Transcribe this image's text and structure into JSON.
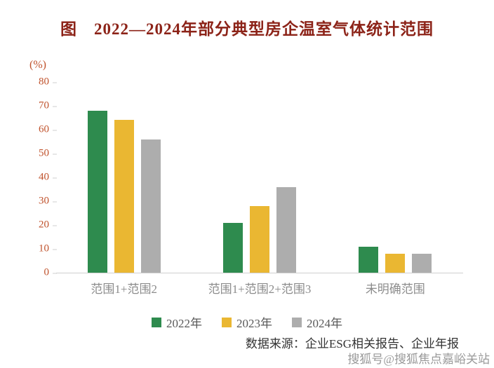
{
  "title": "图　2022—2024年部分典型房企温室气体统计范围",
  "source": "数据来源：企业ESG相关报告、企业年报",
  "watermark": "搜狐号@搜狐焦点嘉峪关站",
  "chart_data": {
    "type": "bar",
    "title": "2022—2024年部分典型房企温室气体统计范围",
    "xlabel": "",
    "ylabel": "(%)",
    "ylim": [
      0,
      80
    ],
    "yticks": [
      0,
      10,
      20,
      30,
      40,
      50,
      60,
      70,
      80
    ],
    "grid": false,
    "legend_position": "bottom",
    "categories": [
      "范围1+范围2",
      "范围1+范围2+范围3",
      "未明确范围"
    ],
    "series": [
      {
        "name": "2022年",
        "color": "#2E8B4E",
        "values": [
          68,
          21,
          11
        ]
      },
      {
        "name": "2023年",
        "color": "#EAB732",
        "values": [
          64,
          28,
          8
        ]
      },
      {
        "name": "2024年",
        "color": "#ADADAD",
        "values": [
          56,
          36,
          8
        ]
      }
    ]
  },
  "colors": {
    "title": "#8C2318",
    "axis_labels": "#C0532D",
    "category_labels": "#8C8C8C",
    "legend_text": "#595959",
    "source_text": "#333333",
    "watermark_text": "#9A9A9A"
  }
}
